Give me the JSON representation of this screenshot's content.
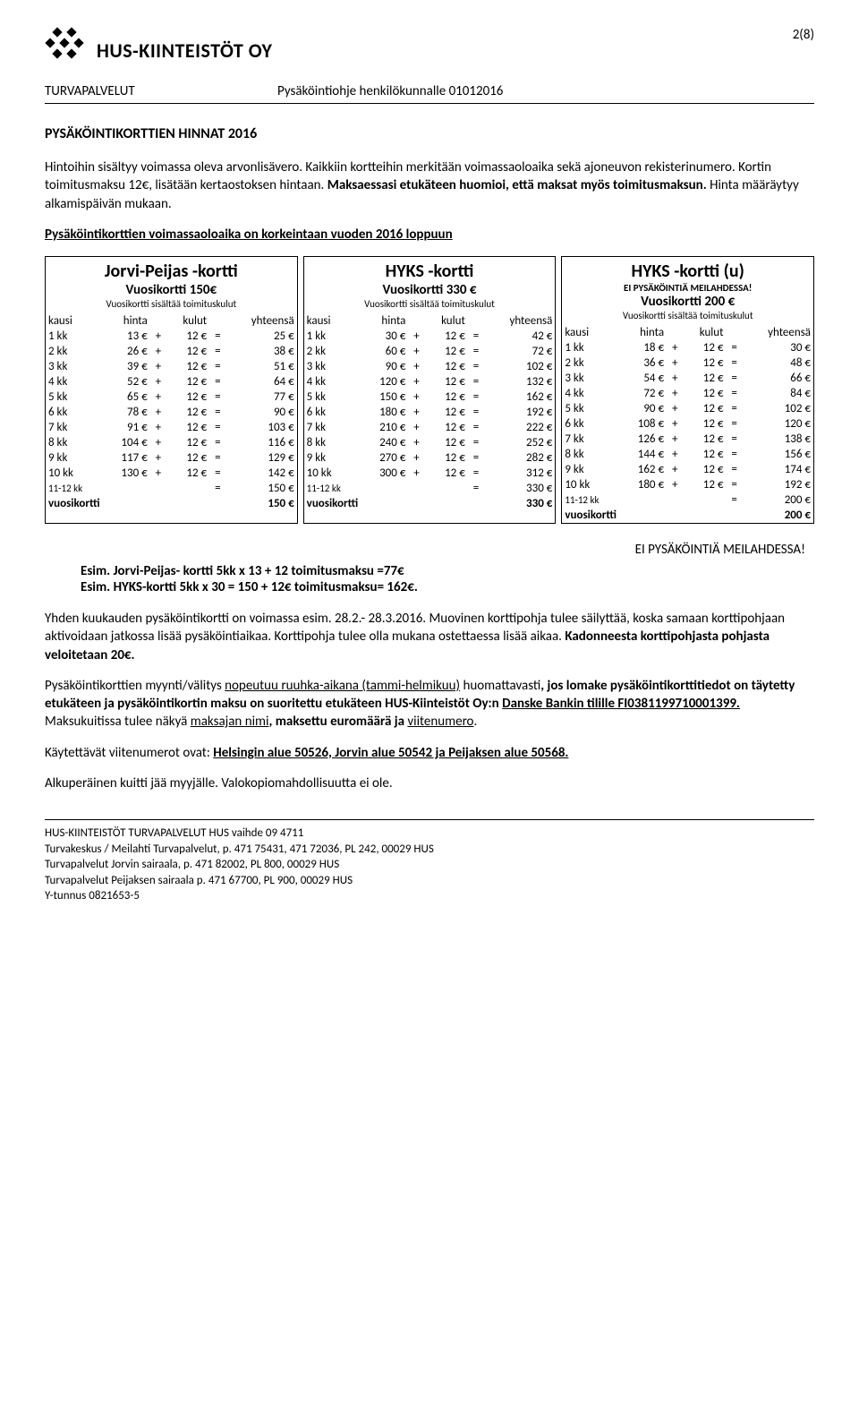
{
  "logo_text": "HUS-KIINTEISTÖT OY",
  "page_number": "2(8)",
  "header_left": "TURVAPALVELUT",
  "header_right": "Pysäköintiohje henkilökunnalle 01012016",
  "section_title": "PYSÄKÖINTIKORTTIEN HINNAT 2016",
  "intro_p1a": "Hintoihin sisältyy voimassa oleva arvonlisävero. Kaikkiin kortteihin merkitään voimassaoloaika sekä ajoneuvon rekisterinumero. Kortin toimitusmaksu 12€, lisätään kertaostoksen hintaan. ",
  "intro_p1b": "Maksaessasi etukäteen huomioi, että maksat myös toimitusmaksun.",
  "intro_p1c": " Hinta määräytyy alkamispäivän mukaan.",
  "intro_p2": "Pysäköintikorttien voimassaoloaika on korkeintaan vuoden 2016 loppuun",
  "col_headers": [
    "kausi",
    "hinta",
    "kulut",
    "yhteensä"
  ],
  "sub_label": "Vuosikortti sisältää toimituskulut",
  "annual_label": "vuosikortti",
  "last_row_label": "11-12 kk",
  "cards": [
    {
      "title": "Jorvi-Peijas -kortti",
      "sub1": "Vuosikortti 150€",
      "warn": "",
      "annual": "150 €",
      "last": "150 €",
      "rows": [
        [
          "1 kk",
          "13 €",
          "12 €",
          "25 €"
        ],
        [
          "2 kk",
          "26 €",
          "12 €",
          "38 €"
        ],
        [
          "3 kk",
          "39 €",
          "12 €",
          "51 €"
        ],
        [
          "4 kk",
          "52 €",
          "12 €",
          "64 €"
        ],
        [
          "5 kk",
          "65 €",
          "12 €",
          "77 €"
        ],
        [
          "6 kk",
          "78 €",
          "12 €",
          "90 €"
        ],
        [
          "7 kk",
          "91 €",
          "12 €",
          "103 €"
        ],
        [
          "8 kk",
          "104 €",
          "12 €",
          "116 €"
        ],
        [
          "9 kk",
          "117 €",
          "12 €",
          "129 €"
        ],
        [
          "10 kk",
          "130 €",
          "12 €",
          "142 €"
        ]
      ]
    },
    {
      "title": "HYKS -kortti",
      "sub1": "Vuosikortti 330 €",
      "warn": "",
      "annual": "330 €",
      "last": "330 €",
      "rows": [
        [
          "1 kk",
          "30 €",
          "12 €",
          "42 €"
        ],
        [
          "2 kk",
          "60 €",
          "12 €",
          "72 €"
        ],
        [
          "3 kk",
          "90 €",
          "12 €",
          "102 €"
        ],
        [
          "4 kk",
          "120 €",
          "12 €",
          "132 €"
        ],
        [
          "5 kk",
          "150 €",
          "12 €",
          "162 €"
        ],
        [
          "6 kk",
          "180 €",
          "12 €",
          "192 €"
        ],
        [
          "7 kk",
          "210 €",
          "12 €",
          "222 €"
        ],
        [
          "8 kk",
          "240 €",
          "12 €",
          "252 €"
        ],
        [
          "9 kk",
          "270 €",
          "12 €",
          "282 €"
        ],
        [
          "10 kk",
          "300 €",
          "12 €",
          "312 €"
        ]
      ]
    },
    {
      "title": "HYKS -kortti (u)",
      "sub1": "Vuosikortti 200 €",
      "warn": "EI PYSÄKÖINTIÄ MEILAHDESSA!",
      "annual": "200 €",
      "last": "200 €",
      "rows": [
        [
          "1 kk",
          "18 €",
          "12 €",
          "30 €"
        ],
        [
          "2 kk",
          "36 €",
          "12 €",
          "48 €"
        ],
        [
          "3 kk",
          "54 €",
          "12 €",
          "66 €"
        ],
        [
          "4 kk",
          "72 €",
          "12 €",
          "84 €"
        ],
        [
          "5 kk",
          "90 €",
          "12 €",
          "102 €"
        ],
        [
          "6 kk",
          "108 €",
          "12 €",
          "120 €"
        ],
        [
          "7 kk",
          "126 €",
          "12 €",
          "138 €"
        ],
        [
          "8 kk",
          "144 €",
          "12 €",
          "156 €"
        ],
        [
          "9 kk",
          "162 €",
          "12 €",
          "174 €"
        ],
        [
          "10 kk",
          "180 €",
          "12 €",
          "192 €"
        ]
      ]
    }
  ],
  "footer_warn": "EI PYSÄKÖINTIÄ MEILAHDESSA!",
  "esim1": "Esim. Jorvi-Peijas- kortti 5kk x 13 + 12 toimitusmaksu =77€",
  "esim2": "Esim. HYKS-kortti 5kk x 30 = 150 + 12€ toimitusmaksu= 162€.",
  "body1a": "Yhden kuukauden pysäköintikortti on voimassa esim. 28.2.- 28.3.2016. Muovinen korttipohja tulee säilyttää, koska samaan korttipohjaan aktivoidaan jatkossa lisää pysäköintiaikaa. Korttipohja tulee olla mukana ostettaessa lisää aikaa. ",
  "body1b": "Kadonneesta korttipohjasta pohjasta veloitetaan 20€.",
  "body2a": "Pysäköintikorttien myynti/välitys ",
  "body2b": "nopeutuu ruuhka-aikana (tammi-helmikuu)",
  "body2c": " huomattavasti",
  "body2d": ", jos lomake pysäköintikorttitiedot on täytetty etukäteen ja pysäköintikortin maksu on suoritettu etukäteen HUS-Kiinteistöt Oy:n ",
  "body2e": "Danske Bankin tilille FI0381199710001399.",
  "body2f": " Maksukuitissa tulee näkyä ",
  "body2g": "maksajan nimi",
  "body2h": ", maksettu euromäärä ja ",
  "body2i": "viitenumero",
  "body2j": ".",
  "body3a": "Käytettävät viitenumerot ovat: ",
  "body3b": "Helsingin alue 50526, Jorvin alue 50542 ja Peijaksen alue 50568.",
  "body4": "Alkuperäinen kuitti jää myyjälle. Valokopiomahdollisuutta ei ole.",
  "footer": [
    "HUS-KIINTEISTÖT TURVAPALVELUT HUS vaihde 09 4711",
    "Turvakeskus / Meilahti Turvapalvelut, p. 471 75431, 471 72036, PL 242, 00029 HUS",
    "Turvapalvelut Jorvin sairaala, p. 471 82002, PL 800, 00029 HUS",
    "Turvapalvelut Peijaksen sairaala p. 471 67700, PL 900, 00029 HUS",
    "Y-tunnus 0821653-5"
  ]
}
